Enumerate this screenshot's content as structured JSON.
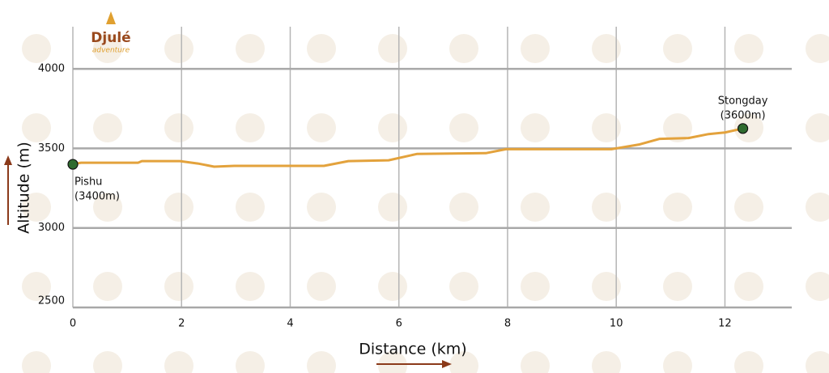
{
  "logo": {
    "name": "Djulé",
    "tagline": "adventure"
  },
  "chart_data": {
    "type": "line",
    "x_label": "Distance (km)",
    "y_label": "Altitude (m)",
    "x": [
      0,
      0.15,
      1.2,
      1.27,
      1.97,
      2.3,
      2.6,
      2.97,
      4.62,
      5.07,
      5.81,
      6.33,
      7.6,
      7.97,
      9.91,
      10.43,
      10.8,
      11.33,
      11.7,
      12.0,
      12.33
    ],
    "series": [
      {
        "color": "#e3a23c",
        "values": [
          3400,
          3410,
          3410,
          3420,
          3420,
          3405,
          3385,
          3390,
          3390,
          3420,
          3425,
          3465,
          3470,
          3495,
          3495,
          3525,
          3560,
          3565,
          3590,
          3600,
          3625
        ]
      }
    ],
    "points": [
      {
        "name": "Pishu",
        "label": "(3400m)",
        "x": 0,
        "y": 3400
      },
      {
        "name": "Stongday",
        "label": "(3600m)",
        "x": 12.33,
        "y": 3625
      }
    ],
    "point_color": "#2f6b2f",
    "xlim": [
      0,
      13.23
    ],
    "ylim": [
      2500,
      4265
    ],
    "xticks": [
      0,
      2,
      4,
      6,
      8,
      10,
      12
    ],
    "yticks": [
      2500,
      3000,
      3500,
      4000
    ],
    "grid": true
  }
}
